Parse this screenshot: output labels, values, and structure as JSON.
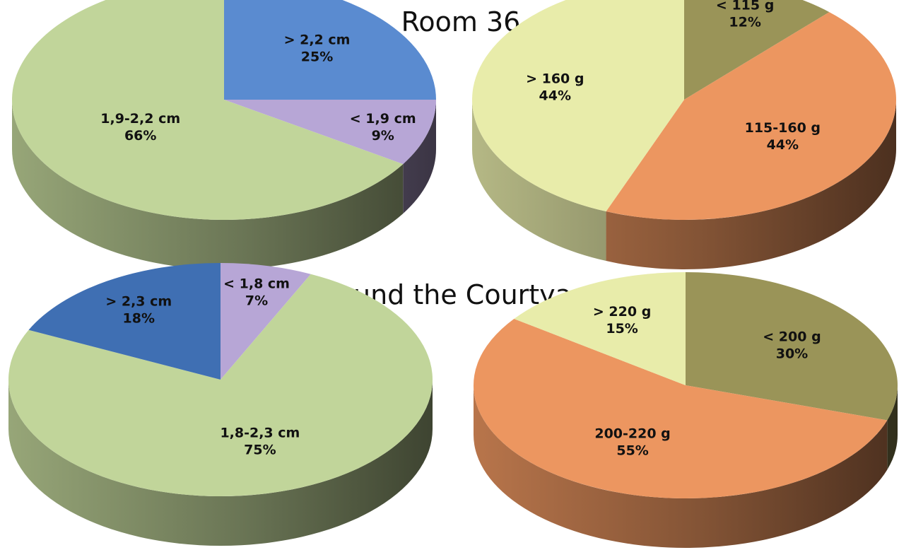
{
  "titles": [
    "Room 36",
    "Around the Courtyard"
  ],
  "chart_data": [
    {
      "type": "pie",
      "section": "Room 36",
      "unit": "cm",
      "slices": [
        {
          "label": "> 2,2 cm",
          "value": 25,
          "value_label": "25%",
          "color": "#5a8bd0"
        },
        {
          "label": "< 1,9 cm",
          "value": 9,
          "value_label": "9%",
          "color": "#b7a6d6"
        },
        {
          "label": "1,9-2,2 cm",
          "value": 66,
          "value_label": "66%",
          "color": "#c1d59a"
        }
      ]
    },
    {
      "type": "pie",
      "section": "Room 36",
      "unit": "g",
      "slices": [
        {
          "label": "< 115 g",
          "value": 12,
          "value_label": "12%",
          "color": "#9a9458"
        },
        {
          "label": "115-160 g",
          "value": 44,
          "value_label": "44%",
          "color": "#ec9660"
        },
        {
          "label": "> 160 g",
          "value": 44,
          "value_label": "44%",
          "color": "#e8ecaa"
        }
      ]
    },
    {
      "type": "pie",
      "section": "Around the Courtyard",
      "unit": "cm",
      "slices": [
        {
          "label": "< 1,8 cm",
          "value": 7,
          "value_label": "7%",
          "color": "#b7a6d6"
        },
        {
          "label": "1,8-2,3 cm",
          "value": 75,
          "value_label": "75%",
          "color": "#c1d59a"
        },
        {
          "label": "> 2,3 cm",
          "value": 18,
          "value_label": "18%",
          "color": "#3f6fb3"
        }
      ]
    },
    {
      "type": "pie",
      "section": "Around the Courtyard",
      "unit": "g",
      "slices": [
        {
          "label": "< 200 g",
          "value": 30,
          "value_label": "30%",
          "color": "#9a9458"
        },
        {
          "label": "200-220 g",
          "value": 55,
          "value_label": "55%",
          "color": "#ec9660"
        },
        {
          "label": "> 220 g",
          "value": 15,
          "value_label": "15%",
          "color": "#e8ecaa"
        }
      ]
    }
  ]
}
